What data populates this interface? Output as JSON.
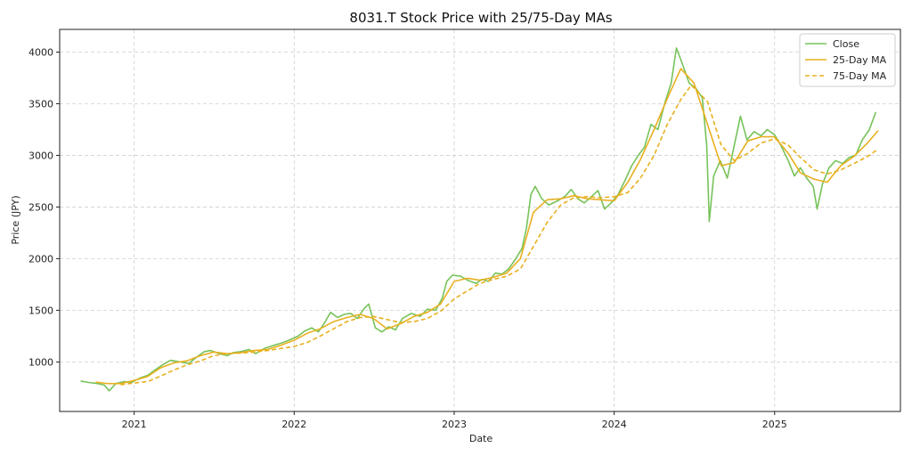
{
  "chart_data": {
    "type": "line",
    "title": "8031.T Stock Price with 25/75-Day MAs",
    "xlabel": "Date",
    "ylabel": "Price (JPY)",
    "x_type": "date",
    "xlim": [
      "2020-07-15",
      "2025-10-15"
    ],
    "ylim": [
      520,
      4220
    ],
    "x_ticks": [
      {
        "value": "2021-01-01",
        "label": "2021"
      },
      {
        "value": "2022-01-01",
        "label": "2022"
      },
      {
        "value": "2023-01-01",
        "label": "2023"
      },
      {
        "value": "2024-01-01",
        "label": "2024"
      },
      {
        "value": "2025-01-01",
        "label": "2025"
      }
    ],
    "y_ticks": [
      1000,
      1500,
      2000,
      2500,
      3000,
      3500,
      4000
    ],
    "grid": true,
    "legend_position": "top-right",
    "series": [
      {
        "name": "Close",
        "color": "#77c35a",
        "style": "solid",
        "points": [
          [
            "2020-09-01",
            815
          ],
          [
            "2020-09-20",
            800
          ],
          [
            "2020-10-10",
            790
          ],
          [
            "2020-10-25",
            775
          ],
          [
            "2020-11-05",
            720
          ],
          [
            "2020-11-20",
            790
          ],
          [
            "2020-12-10",
            810
          ],
          [
            "2020-12-25",
            800
          ],
          [
            "2021-01-15",
            845
          ],
          [
            "2021-02-01",
            870
          ],
          [
            "2021-02-20",
            930
          ],
          [
            "2021-03-10",
            980
          ],
          [
            "2021-03-25",
            1015
          ],
          [
            "2021-04-15",
            1000
          ],
          [
            "2021-05-05",
            985
          ],
          [
            "2021-05-25",
            1050
          ],
          [
            "2021-06-10",
            1100
          ],
          [
            "2021-06-25",
            1110
          ],
          [
            "2021-07-15",
            1080
          ],
          [
            "2021-08-01",
            1060
          ],
          [
            "2021-08-15",
            1090
          ],
          [
            "2021-09-01",
            1100
          ],
          [
            "2021-09-20",
            1120
          ],
          [
            "2021-10-05",
            1080
          ],
          [
            "2021-10-25",
            1130
          ],
          [
            "2021-11-15",
            1160
          ],
          [
            "2021-12-01",
            1180
          ],
          [
            "2021-12-20",
            1210
          ],
          [
            "2022-01-10",
            1250
          ],
          [
            "2022-01-25",
            1300
          ],
          [
            "2022-02-10",
            1330
          ],
          [
            "2022-02-25",
            1290
          ],
          [
            "2022-03-10",
            1370
          ],
          [
            "2022-03-25",
            1480
          ],
          [
            "2022-04-10",
            1430
          ],
          [
            "2022-04-25",
            1460
          ],
          [
            "2022-05-10",
            1470
          ],
          [
            "2022-05-25",
            1420
          ],
          [
            "2022-06-10",
            1520
          ],
          [
            "2022-06-20",
            1560
          ],
          [
            "2022-07-05",
            1330
          ],
          [
            "2022-07-20",
            1290
          ],
          [
            "2022-08-05",
            1340
          ],
          [
            "2022-08-20",
            1310
          ],
          [
            "2022-09-05",
            1420
          ],
          [
            "2022-09-25",
            1470
          ],
          [
            "2022-10-15",
            1440
          ],
          [
            "2022-11-01",
            1510
          ],
          [
            "2022-11-20",
            1500
          ],
          [
            "2022-12-05",
            1620
          ],
          [
            "2022-12-15",
            1780
          ],
          [
            "2022-12-28",
            1840
          ],
          [
            "2023-01-15",
            1830
          ],
          [
            "2023-02-01",
            1790
          ],
          [
            "2023-02-20",
            1760
          ],
          [
            "2023-03-05",
            1800
          ],
          [
            "2023-03-20",
            1780
          ],
          [
            "2023-04-05",
            1860
          ],
          [
            "2023-04-20",
            1850
          ],
          [
            "2023-05-05",
            1900
          ],
          [
            "2023-05-20",
            1990
          ],
          [
            "2023-06-05",
            2100
          ],
          [
            "2023-06-15",
            2300
          ],
          [
            "2023-06-25",
            2620
          ],
          [
            "2023-07-05",
            2700
          ],
          [
            "2023-07-20",
            2580
          ],
          [
            "2023-08-05",
            2520
          ],
          [
            "2023-08-25",
            2560
          ],
          [
            "2023-09-10",
            2600
          ],
          [
            "2023-09-25",
            2670
          ],
          [
            "2023-10-10",
            2580
          ],
          [
            "2023-10-25",
            2540
          ],
          [
            "2023-11-10",
            2600
          ],
          [
            "2023-11-25",
            2660
          ],
          [
            "2023-12-10",
            2480
          ],
          [
            "2023-12-25",
            2540
          ],
          [
            "2024-01-10",
            2620
          ],
          [
            "2024-01-25",
            2750
          ],
          [
            "2024-02-10",
            2900
          ],
          [
            "2024-02-25",
            3000
          ],
          [
            "2024-03-10",
            3080
          ],
          [
            "2024-03-25",
            3300
          ],
          [
            "2024-04-10",
            3250
          ],
          [
            "2024-04-25",
            3500
          ],
          [
            "2024-05-10",
            3700
          ],
          [
            "2024-05-22",
            4040
          ],
          [
            "2024-06-05",
            3880
          ],
          [
            "2024-06-20",
            3700
          ],
          [
            "2024-07-05",
            3650
          ],
          [
            "2024-07-20",
            3560
          ],
          [
            "2024-07-30",
            3100
          ],
          [
            "2024-08-05",
            2360
          ],
          [
            "2024-08-15",
            2800
          ],
          [
            "2024-08-30",
            2950
          ],
          [
            "2024-09-15",
            2780
          ],
          [
            "2024-10-01",
            3100
          ],
          [
            "2024-10-15",
            3380
          ],
          [
            "2024-10-30",
            3150
          ],
          [
            "2024-11-15",
            3230
          ],
          [
            "2024-12-01",
            3190
          ],
          [
            "2024-12-15",
            3250
          ],
          [
            "2025-01-01",
            3200
          ],
          [
            "2025-01-15",
            3100
          ],
          [
            "2025-02-01",
            2950
          ],
          [
            "2025-02-15",
            2800
          ],
          [
            "2025-03-01",
            2880
          ],
          [
            "2025-03-15",
            2780
          ],
          [
            "2025-03-30",
            2700
          ],
          [
            "2025-04-08",
            2480
          ],
          [
            "2025-04-20",
            2720
          ],
          [
            "2025-05-05",
            2880
          ],
          [
            "2025-05-20",
            2950
          ],
          [
            "2025-06-05",
            2920
          ],
          [
            "2025-06-20",
            2980
          ],
          [
            "2025-07-05",
            3000
          ],
          [
            "2025-07-20",
            3150
          ],
          [
            "2025-08-05",
            3250
          ],
          [
            "2025-08-20",
            3420
          ]
        ]
      },
      {
        "name": "25-Day MA",
        "color": "#e8b020",
        "style": "solid",
        "points": [
          [
            "2020-10-05",
            805
          ],
          [
            "2020-11-01",
            790
          ],
          [
            "2020-12-01",
            790
          ],
          [
            "2021-01-01",
            820
          ],
          [
            "2021-02-01",
            860
          ],
          [
            "2021-03-01",
            940
          ],
          [
            "2021-04-01",
            990
          ],
          [
            "2021-05-01",
            1010
          ],
          [
            "2021-06-01",
            1060
          ],
          [
            "2021-07-01",
            1095
          ],
          [
            "2021-08-01",
            1080
          ],
          [
            "2021-09-01",
            1090
          ],
          [
            "2021-10-01",
            1110
          ],
          [
            "2021-11-01",
            1120
          ],
          [
            "2021-12-01",
            1160
          ],
          [
            "2022-01-01",
            1210
          ],
          [
            "2022-02-01",
            1280
          ],
          [
            "2022-03-01",
            1320
          ],
          [
            "2022-04-01",
            1390
          ],
          [
            "2022-05-01",
            1430
          ],
          [
            "2022-06-01",
            1460
          ],
          [
            "2022-07-01",
            1420
          ],
          [
            "2022-08-01",
            1320
          ],
          [
            "2022-09-01",
            1370
          ],
          [
            "2022-10-01",
            1440
          ],
          [
            "2022-11-01",
            1480
          ],
          [
            "2022-12-01",
            1560
          ],
          [
            "2023-01-01",
            1780
          ],
          [
            "2023-02-01",
            1810
          ],
          [
            "2023-03-01",
            1790
          ],
          [
            "2023-04-01",
            1820
          ],
          [
            "2023-05-01",
            1860
          ],
          [
            "2023-06-01",
            2000
          ],
          [
            "2023-07-01",
            2450
          ],
          [
            "2023-08-01",
            2570
          ],
          [
            "2023-09-01",
            2580
          ],
          [
            "2023-10-01",
            2610
          ],
          [
            "2023-11-01",
            2580
          ],
          [
            "2023-12-01",
            2570
          ],
          [
            "2024-01-01",
            2560
          ],
          [
            "2024-02-01",
            2740
          ],
          [
            "2024-03-01",
            2960
          ],
          [
            "2024-04-01",
            3250
          ],
          [
            "2024-05-01",
            3550
          ],
          [
            "2024-06-01",
            3840
          ],
          [
            "2024-07-01",
            3700
          ],
          [
            "2024-08-01",
            3300
          ],
          [
            "2024-09-01",
            2900
          ],
          [
            "2024-10-01",
            2930
          ],
          [
            "2024-11-01",
            3140
          ],
          [
            "2024-12-01",
            3180
          ],
          [
            "2025-01-01",
            3180
          ],
          [
            "2025-02-01",
            3020
          ],
          [
            "2025-03-01",
            2830
          ],
          [
            "2025-04-01",
            2770
          ],
          [
            "2025-05-01",
            2740
          ],
          [
            "2025-06-01",
            2900
          ],
          [
            "2025-07-01",
            2990
          ],
          [
            "2025-08-01",
            3120
          ],
          [
            "2025-08-25",
            3240
          ]
        ]
      },
      {
        "name": "75-Day MA",
        "color": "#e8b020",
        "style": "dashed",
        "points": [
          [
            "2020-12-01",
            780
          ],
          [
            "2021-01-01",
            795
          ],
          [
            "2021-02-01",
            810
          ],
          [
            "2021-03-01",
            860
          ],
          [
            "2021-04-01",
            920
          ],
          [
            "2021-05-01",
            970
          ],
          [
            "2021-06-01",
            1010
          ],
          [
            "2021-07-01",
            1060
          ],
          [
            "2021-08-01",
            1080
          ],
          [
            "2021-09-01",
            1085
          ],
          [
            "2021-10-01",
            1095
          ],
          [
            "2021-11-01",
            1110
          ],
          [
            "2021-12-01",
            1130
          ],
          [
            "2022-01-01",
            1150
          ],
          [
            "2022-02-01",
            1190
          ],
          [
            "2022-03-01",
            1250
          ],
          [
            "2022-04-01",
            1320
          ],
          [
            "2022-05-01",
            1390
          ],
          [
            "2022-06-01",
            1430
          ],
          [
            "2022-07-01",
            1440
          ],
          [
            "2022-08-01",
            1410
          ],
          [
            "2022-09-01",
            1380
          ],
          [
            "2022-10-01",
            1390
          ],
          [
            "2022-11-01",
            1420
          ],
          [
            "2022-12-01",
            1490
          ],
          [
            "2023-01-01",
            1610
          ],
          [
            "2023-02-01",
            1690
          ],
          [
            "2023-03-01",
            1760
          ],
          [
            "2023-04-01",
            1800
          ],
          [
            "2023-05-01",
            1830
          ],
          [
            "2023-06-01",
            1900
          ],
          [
            "2023-07-01",
            2120
          ],
          [
            "2023-08-01",
            2350
          ],
          [
            "2023-09-01",
            2520
          ],
          [
            "2023-10-01",
            2590
          ],
          [
            "2023-11-01",
            2600
          ],
          [
            "2023-12-01",
            2590
          ],
          [
            "2024-01-01",
            2600
          ],
          [
            "2024-02-01",
            2640
          ],
          [
            "2024-03-01",
            2780
          ],
          [
            "2024-04-01",
            3000
          ],
          [
            "2024-05-01",
            3300
          ],
          [
            "2024-06-01",
            3540
          ],
          [
            "2024-06-25",
            3680
          ],
          [
            "2024-08-01",
            3520
          ],
          [
            "2024-09-01",
            3100
          ],
          [
            "2024-10-01",
            2950
          ],
          [
            "2024-11-01",
            3020
          ],
          [
            "2024-12-01",
            3120
          ],
          [
            "2025-01-01",
            3160
          ],
          [
            "2025-02-01",
            3100
          ],
          [
            "2025-03-01",
            2980
          ],
          [
            "2025-04-01",
            2860
          ],
          [
            "2025-05-01",
            2820
          ],
          [
            "2025-06-01",
            2860
          ],
          [
            "2025-07-01",
            2920
          ],
          [
            "2025-08-01",
            2990
          ],
          [
            "2025-08-25",
            3060
          ]
        ]
      }
    ]
  }
}
